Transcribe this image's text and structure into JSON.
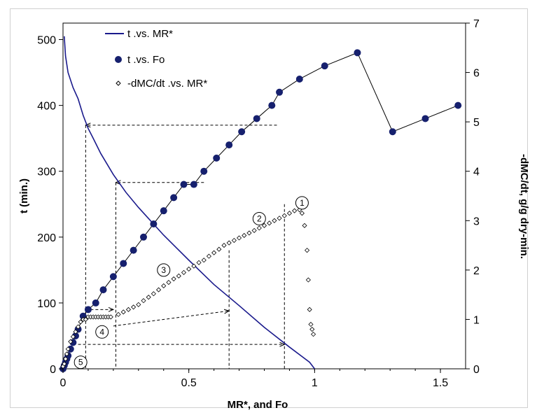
{
  "chart_data": {
    "type": "scatter",
    "xlabel": "MR*, and Fo",
    "ylabel_left": "t  (min.)",
    "ylabel_right": "-dMC/dt, g/g dry-min.",
    "xlim": [
      0,
      1.6
    ],
    "ylim_left": [
      0,
      525
    ],
    "ylim_right": [
      0,
      7
    ],
    "x_ticks": [
      "0",
      "0.5",
      "1",
      "1.5"
    ],
    "y_left_ticks": [
      "0",
      "100",
      "200",
      "300",
      "400",
      "500"
    ],
    "y_right_ticks": [
      "0",
      "1",
      "2",
      "3",
      "4",
      "5",
      "6",
      "7"
    ],
    "legend": [
      {
        "label": "t .vs. MR*",
        "marker": "line",
        "color": "#1a1a8c"
      },
      {
        "label": "t .vs. Fo",
        "marker": "filled-circle",
        "color": "#16206e"
      },
      {
        "label": "-dMC/dt .vs. MR*",
        "marker": "open-diamond",
        "color": "#000000"
      }
    ],
    "series": [
      {
        "name": "t .vs. MR*",
        "axis": "left",
        "style": "line",
        "color": "#1a1a8c",
        "x": [
          1.0,
          0.98,
          0.9,
          0.8,
          0.7,
          0.6,
          0.5,
          0.4,
          0.3,
          0.25,
          0.2,
          0.15,
          0.12,
          0.1,
          0.08,
          0.06,
          0.04,
          0.02,
          0.01,
          0.005
        ],
        "y": [
          0,
          10,
          33,
          63,
          96,
          128,
          165,
          203,
          245,
          268,
          295,
          327,
          350,
          365,
          385,
          410,
          427,
          450,
          475,
          505
        ]
      },
      {
        "name": "t .vs. Fo",
        "axis": "left",
        "style": "points-with-line",
        "color": "#16206e",
        "x": [
          0.0,
          0.005,
          0.01,
          0.015,
          0.02,
          0.03,
          0.04,
          0.05,
          0.06,
          0.08,
          0.1,
          0.13,
          0.16,
          0.2,
          0.24,
          0.28,
          0.32,
          0.36,
          0.4,
          0.44,
          0.48,
          0.52,
          0.56,
          0.61,
          0.66,
          0.71,
          0.77,
          0.83,
          0.86,
          0.94,
          1.04,
          1.17,
          1.31,
          1.44,
          1.57
        ],
        "y": [
          0,
          5,
          10,
          15,
          20,
          30,
          40,
          50,
          60,
          80,
          90,
          100,
          120,
          140,
          160,
          180,
          200,
          220,
          240,
          260,
          280,
          280,
          300,
          320,
          340,
          360,
          380,
          400,
          420,
          440,
          460,
          480,
          360,
          380,
          400
        ]
      },
      {
        "name": "-dMC/dt .vs. MR*",
        "axis": "right",
        "style": "open-diamonds",
        "color": "#000000",
        "x": [
          0.0,
          0.005,
          0.01,
          0.015,
          0.02,
          0.03,
          0.04,
          0.05,
          0.06,
          0.07,
          0.08,
          0.09,
          0.1,
          0.11,
          0.12,
          0.13,
          0.14,
          0.15,
          0.16,
          0.17,
          0.18,
          0.19,
          0.22,
          0.24,
          0.26,
          0.28,
          0.3,
          0.32,
          0.34,
          0.36,
          0.38,
          0.4,
          0.42,
          0.44,
          0.46,
          0.48,
          0.5,
          0.52,
          0.54,
          0.56,
          0.58,
          0.6,
          0.62,
          0.64,
          0.66,
          0.68,
          0.7,
          0.72,
          0.74,
          0.76,
          0.78,
          0.8,
          0.82,
          0.84,
          0.86,
          0.88,
          0.9,
          0.92,
          0.94,
          0.95,
          0.96,
          0.97,
          0.975,
          0.98,
          0.985,
          0.99,
          0.995
        ],
        "y": [
          0.05,
          0.1,
          0.2,
          0.3,
          0.4,
          0.55,
          0.65,
          0.75,
          0.85,
          0.95,
          1.0,
          1.0,
          1.05,
          1.05,
          1.05,
          1.05,
          1.05,
          1.05,
          1.05,
          1.05,
          1.05,
          1.05,
          1.1,
          1.15,
          1.2,
          1.25,
          1.3,
          1.38,
          1.45,
          1.52,
          1.6,
          1.68,
          1.75,
          1.82,
          1.88,
          1.95,
          2.02,
          2.08,
          2.15,
          2.2,
          2.28,
          2.35,
          2.42,
          2.5,
          2.55,
          2.6,
          2.65,
          2.7,
          2.75,
          2.8,
          2.85,
          2.9,
          2.95,
          3.0,
          3.05,
          3.1,
          3.15,
          3.2,
          3.22,
          3.15,
          2.9,
          2.4,
          1.8,
          1.2,
          0.9,
          0.8,
          0.7
        ]
      }
    ],
    "annotations": [
      {
        "label": "1",
        "x": 0.95,
        "y_left": 252
      },
      {
        "label": "2",
        "x": 0.78,
        "y_left": 228
      },
      {
        "label": "3",
        "x": 0.4,
        "y_left": 150
      },
      {
        "label": "4",
        "x": 0.155,
        "y_left": 56
      },
      {
        "label": "5",
        "x": 0.07,
        "y_left": 10
      }
    ],
    "guide_arrows": [
      {
        "from": [
          0.85,
          370
        ],
        "to": [
          0.09,
          370
        ]
      },
      {
        "from": [
          0.56,
          283
        ],
        "to": [
          0.21,
          283
        ]
      },
      {
        "from": [
          0.09,
          90
        ],
        "to": [
          0.2,
          90
        ]
      },
      {
        "from": [
          0.2,
          65
        ],
        "to": [
          0.66,
          88
        ]
      },
      {
        "from": [
          0.06,
          37
        ],
        "to": [
          0.88,
          37
        ]
      }
    ]
  }
}
